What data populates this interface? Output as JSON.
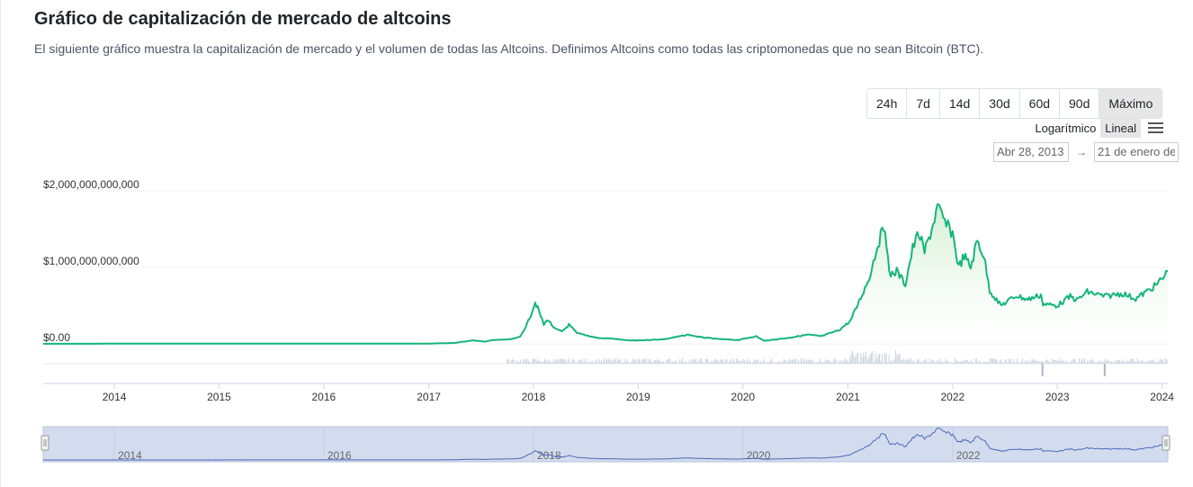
{
  "header": {
    "title": "Gráfico de capitalización de mercado de altcoins",
    "description": "El siguiente gráfico muestra la capitalización de mercado y el volumen de todas las Altcoins. Definimos Altcoins como todas las criptomonedas que no sean Bitcoin (BTC)."
  },
  "controls": {
    "ranges": [
      "24h",
      "7d",
      "14d",
      "30d",
      "60d",
      "90d",
      "Máximo"
    ],
    "active_range": "Máximo",
    "scales": [
      "Logarítmico",
      "Lineal"
    ],
    "active_scale": "Lineal",
    "menu_icon": "hamburger-menu-icon",
    "date_from": "Abr 28, 2013",
    "date_to": "21 de enero de",
    "date_arrow": "→"
  },
  "colors": {
    "line": "#16b57a",
    "area_top": "#cfeecf",
    "volume": "#c8d0db",
    "navigator_fill": "#d3dcef",
    "navigator_line": "#4a6ab8"
  },
  "chart_data": {
    "type": "area",
    "series": [
      {
        "x": [
          "2013-04-28",
          "2014-01-01",
          "2015-01-01",
          "2016-01-01",
          "2017-01-01",
          "2017-04-01",
          "2017-06-01",
          "2017-07-15",
          "2017-08-15",
          "2017-09-15",
          "2017-10-15",
          "2017-11-15",
          "2017-12-15",
          "2018-01-07",
          "2018-01-20",
          "2018-02-06",
          "2018-02-20",
          "2018-03-15",
          "2018-04-10",
          "2018-05-05",
          "2018-06-01",
          "2018-07-01",
          "2018-08-15",
          "2018-10-01",
          "2018-11-25",
          "2019-01-01",
          "2019-04-01",
          "2019-06-25",
          "2019-08-01",
          "2019-10-01",
          "2019-12-15",
          "2020-02-15",
          "2020-03-15",
          "2020-06-01",
          "2020-08-15",
          "2020-10-01",
          "2020-12-01",
          "2021-01-10",
          "2021-02-20",
          "2021-03-15",
          "2021-04-15",
          "2021-05-11",
          "2021-05-25",
          "2021-06-20",
          "2021-07-20",
          "2021-08-15",
          "2021-09-05",
          "2021-09-25",
          "2021-10-20",
          "2021-11-09",
          "2021-12-10",
          "2022-01-01",
          "2022-01-22",
          "2022-02-10",
          "2022-03-05",
          "2022-03-28",
          "2022-04-20",
          "2022-05-10",
          "2022-06-18",
          "2022-08-10",
          "2022-09-20",
          "2022-11-05",
          "2022-11-12",
          "2023-01-01",
          "2023-02-15",
          "2023-03-10",
          "2023-04-15",
          "2023-06-15",
          "2023-08-15",
          "2023-10-01",
          "2023-11-15",
          "2023-12-15",
          "2024-01-10",
          "2024-01-21"
        ],
        "values": [
          1000000000,
          2000000000,
          2500000000,
          3000000000,
          3500000000,
          12000000000,
          45000000000,
          30000000000,
          50000000000,
          55000000000,
          60000000000,
          90000000000,
          300000000000,
          545000000000,
          430000000000,
          250000000000,
          320000000000,
          200000000000,
          160000000000,
          250000000000,
          140000000000,
          115000000000,
          75000000000,
          70000000000,
          45000000000,
          45000000000,
          60000000000,
          120000000000,
          90000000000,
          65000000000,
          50000000000,
          100000000000,
          40000000000,
          75000000000,
          120000000000,
          100000000000,
          180000000000,
          300000000000,
          650000000000,
          850000000000,
          1300000000000,
          1550000000000,
          900000000000,
          950000000000,
          780000000000,
          1250000000000,
          1450000000000,
          1200000000000,
          1500000000000,
          1780000000000,
          1550000000000,
          1450000000000,
          1000000000000,
          1150000000000,
          1000000000000,
          1350000000000,
          1150000000000,
          700000000000,
          500000000000,
          630000000000,
          580000000000,
          640000000000,
          520000000000,
          500000000000,
          620000000000,
          570000000000,
          680000000000,
          620000000000,
          660000000000,
          590000000000,
          700000000000,
          780000000000,
          890000000000,
          950000000000
        ]
      }
    ],
    "y_ticks": [
      "$2,000,000,000,000",
      "$1,000,000,000,000",
      "$0.00"
    ],
    "ylim": [
      0,
      2000000000000
    ],
    "x_ticks": [
      "2014",
      "2015",
      "2016",
      "2017",
      "2018",
      "2019",
      "2020",
      "2021",
      "2022",
      "2023",
      "2024"
    ],
    "xlim": [
      "2013-04-28",
      "2024-01-21"
    ],
    "navigator_ticks": [
      "2014",
      "2016",
      "2018",
      "2020",
      "2022"
    ],
    "grid": true,
    "legend": "none"
  }
}
